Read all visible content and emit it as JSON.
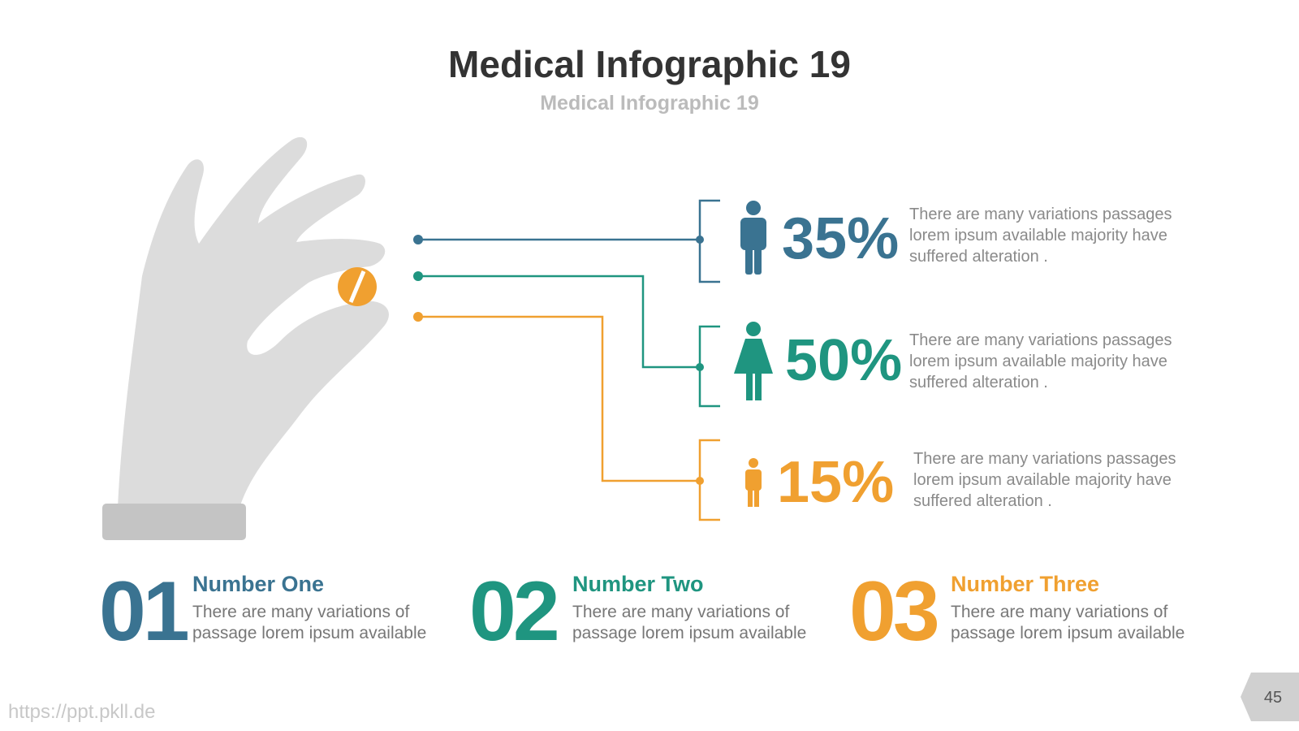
{
  "header": {
    "title": "Medical Infographic 19",
    "subtitle": "Medical Infographic 19"
  },
  "stats": [
    {
      "value": "35%",
      "text": [
        "There are many variations passages",
        "lorem ipsum available  majority have",
        "suffered alteration ."
      ]
    },
    {
      "value": "50%",
      "text": [
        "There are many variations passages",
        "lorem ipsum available  majority have",
        "suffered alteration ."
      ]
    },
    {
      "value": "15%",
      "text": [
        "There are many variations passages",
        "lorem ipsum available  majority have",
        "suffered alteration ."
      ]
    }
  ],
  "items": [
    {
      "number": "01",
      "title": "Number One",
      "text": [
        "There are many variations of",
        "passage lorem ipsum available"
      ]
    },
    {
      "number": "02",
      "title": "Number Two",
      "text": [
        "There are many variations of",
        "passage lorem ipsum available"
      ]
    },
    {
      "number": "03",
      "title": "Number Three",
      "text": [
        "There are many variations of",
        "passage lorem ipsum available"
      ]
    }
  ],
  "footer": {
    "url": "https://ppt.pkll.de",
    "page": "45"
  }
}
